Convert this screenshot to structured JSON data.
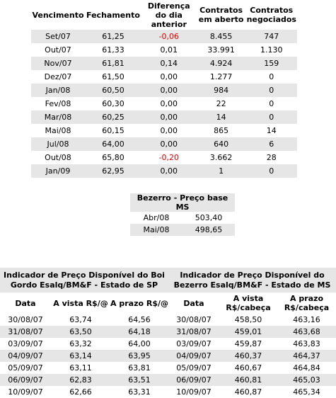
{
  "futures": {
    "headers": [
      "Vencimento",
      "Fechamento",
      "Diferença do dia anterior",
      "Contratos em aberto",
      "Contratos negociados"
    ],
    "rows": [
      [
        "Set/07",
        "61,25",
        "-0,06",
        "8.455",
        "747"
      ],
      [
        "Out/07",
        "61,33",
        "0,01",
        "33.991",
        "1.130"
      ],
      [
        "Nov/07",
        "61,81",
        "0,14",
        "4.924",
        "159"
      ],
      [
        "Dez/07",
        "61,50",
        "0,00",
        "1.277",
        "0"
      ],
      [
        "Jan/08",
        "60,50",
        "0,00",
        "984",
        "0"
      ],
      [
        "Fev/08",
        "60,30",
        "0,00",
        "22",
        "0"
      ],
      [
        "Mar/08",
        "60,25",
        "0,00",
        "14",
        "0"
      ],
      [
        "Mai/08",
        "60,15",
        "0,00",
        "865",
        "14"
      ],
      [
        "Jul/08",
        "64,00",
        "0,00",
        "640",
        "6"
      ],
      [
        "Out/08",
        "65,80",
        "-0,20",
        "3.662",
        "28"
      ],
      [
        "Jan/09",
        "62,95",
        "0,00",
        "1",
        "0"
      ]
    ],
    "negative_color": "#dd0000"
  },
  "bezerro": {
    "title": "Bezerro - Preço base MS",
    "rows": [
      [
        "Abr/08",
        "503,40"
      ],
      [
        "Mai/08",
        "498,65"
      ]
    ]
  },
  "boi_indicator": {
    "title": "Indicador de Preço Disponível do Boi Gordo Esalq/BM&F - Estado de SP",
    "headers": [
      "Data",
      "A vista R$/@",
      "A prazo R$/@"
    ],
    "rows": [
      [
        "30/08/07",
        "63,74",
        "64,56"
      ],
      [
        "31/08/07",
        "63,50",
        "64,18"
      ],
      [
        "03/09/07",
        "63,32",
        "64,00"
      ],
      [
        "04/09/07",
        "63,14",
        "63,95"
      ],
      [
        "05/09/07",
        "63,11",
        "63,81"
      ],
      [
        "06/09/07",
        "62,83",
        "63,51"
      ],
      [
        "10/09/07",
        "62,66",
        "63,31"
      ]
    ]
  },
  "bezerro_indicator": {
    "title": "Indicador de Preço Disponível do Bezerro Esalq/BM&F - Estado de MS",
    "headers": [
      "Data",
      "A vista R$/cabeça",
      "A prazo R$/cabeça"
    ],
    "rows": [
      [
        "30/08/07",
        "458,50",
        "463,16"
      ],
      [
        "31/08/07",
        "459,01",
        "463,68"
      ],
      [
        "03/09/07",
        "459,87",
        "463,83"
      ],
      [
        "04/09/07",
        "460,37",
        "464,37"
      ],
      [
        "05/09/07",
        "460,67",
        "464,84"
      ],
      [
        "06/09/07",
        "460,81",
        "465,03"
      ],
      [
        "10/09/07",
        "460,87",
        "465,34"
      ]
    ]
  },
  "shade_color": "#e6e6e6"
}
